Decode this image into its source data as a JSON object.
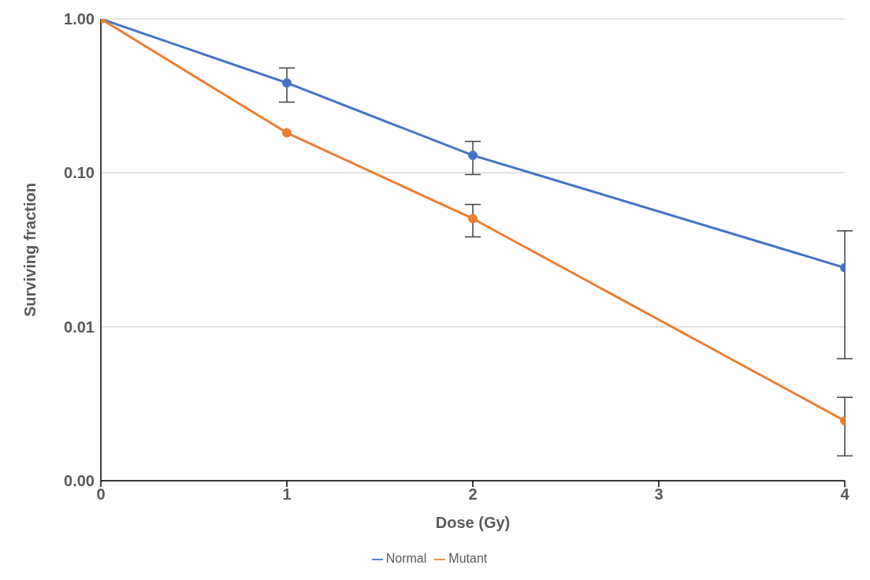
{
  "chart_data": {
    "type": "line",
    "xlabel": "Dose  (Gy)",
    "ylabel": "Surviving fraction",
    "x": [
      0,
      1,
      2,
      4
    ],
    "series": [
      {
        "name": "Normal",
        "color": "#4472c4",
        "values": [
          1,
          0.384,
          0.13,
          0.0242
        ],
        "errors": [
          null,
          [
            0.288,
            0.48
          ],
          [
            0.0975,
            0.16
          ],
          [
            0.0062,
            0.042
          ]
        ]
      },
      {
        "name": "Mutant",
        "color": "#ed7d31",
        "values": [
          1,
          0.182,
          0.0504,
          0.00245
        ],
        "errors": [
          null,
          null,
          [
            0.0384,
            0.0623
          ],
          [
            0.00145,
            0.00348
          ]
        ]
      }
    ],
    "xlim": [
      0,
      4
    ],
    "xticks": [
      0,
      1,
      2,
      3,
      4
    ],
    "ylim": [
      0.001,
      1
    ],
    "yticks": [
      {
        "value": 0.001,
        "label": "0.00"
      },
      {
        "value": 0.01,
        "label": "0.01"
      },
      {
        "value": 0.1,
        "label": "0.10"
      },
      {
        "value": 1,
        "label": "1.00"
      }
    ],
    "log": "y",
    "grid": "y",
    "legend": "bottom",
    "marker": "circle",
    "line_style": "solid"
  }
}
